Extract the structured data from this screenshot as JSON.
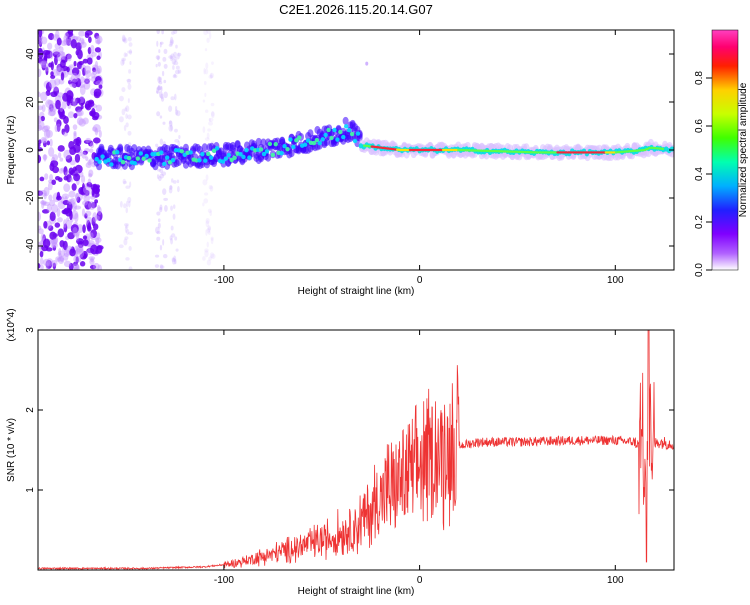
{
  "title": "C2E1.2026.115.20.14.G07",
  "chart_data": [
    {
      "type": "heatmap",
      "xlabel": "Height of straight line (km)",
      "ylabel": "Frequency (Hz)",
      "xlim": [
        -195,
        130
      ],
      "ylim": [
        -50,
        50
      ],
      "x_ticks": [
        -100,
        0,
        100
      ],
      "x_tick_labels": [
        "-100",
        "0",
        "100"
      ],
      "y_ticks": [
        -40,
        -20,
        0,
        20,
        40
      ],
      "y_tick_labels": [
        "-40",
        "-20",
        "0",
        "20",
        "40"
      ],
      "colorbar": {
        "label": "Normalized spectral amplitude",
        "range": [
          0,
          1
        ],
        "ticks": [
          0.0,
          0.2,
          0.4,
          0.6,
          0.8
        ],
        "tick_labels": [
          "0.0",
          "0.2",
          "0.4",
          "0.6",
          "0.8"
        ],
        "colors": [
          "#ffffff",
          "#a000ff",
          "#2020ff",
          "#00e0ff",
          "#00ff60",
          "#c0ff00",
          "#ffe000",
          "#ff2000",
          "#ff0080",
          "#ff40c0"
        ]
      },
      "ridge": [
        [
          -165,
          -3
        ],
        [
          -130,
          -3
        ],
        [
          -100,
          -2
        ],
        [
          -80,
          0
        ],
        [
          -60,
          3
        ],
        [
          -45,
          6
        ],
        [
          -35,
          9
        ],
        [
          -30,
          2
        ],
        [
          -10,
          0
        ],
        [
          20,
          0
        ],
        [
          60,
          -1
        ],
        [
          100,
          -1
        ],
        [
          115,
          0
        ],
        [
          118,
          1
        ],
        [
          130,
          0
        ]
      ]
    },
    {
      "type": "line",
      "xlabel": "Height of straight line (km)",
      "ylabel": "SNR (10 * v/v)",
      "y_multiplier": "(x10^4)",
      "xlim": [
        -195,
        130
      ],
      "ylim": [
        0,
        3
      ],
      "x_ticks": [
        -100,
        0,
        100
      ],
      "x_tick_labels": [
        "-100",
        "0",
        "100"
      ],
      "y_ticks": [
        1,
        2,
        3
      ],
      "y_tick_labels": [
        "1",
        "2",
        "3"
      ],
      "color": "#ee3333",
      "envelope": [
        [
          -195,
          0.02
        ],
        [
          -140,
          0.02
        ],
        [
          -110,
          0.04
        ],
        [
          -95,
          0.08
        ],
        [
          -75,
          0.2
        ],
        [
          -60,
          0.3
        ],
        [
          -45,
          0.4
        ],
        [
          -30,
          0.6
        ],
        [
          -20,
          0.9
        ],
        [
          -10,
          1.1
        ],
        [
          0,
          1.3
        ],
        [
          10,
          1.45
        ],
        [
          20,
          1.55
        ],
        [
          30,
          1.6
        ],
        [
          50,
          1.6
        ],
        [
          80,
          1.62
        ],
        [
          100,
          1.62
        ],
        [
          110,
          1.6
        ],
        [
          115,
          1.5
        ],
        [
          118,
          1.55
        ],
        [
          122,
          1.6
        ],
        [
          130,
          1.58
        ]
      ]
    }
  ]
}
